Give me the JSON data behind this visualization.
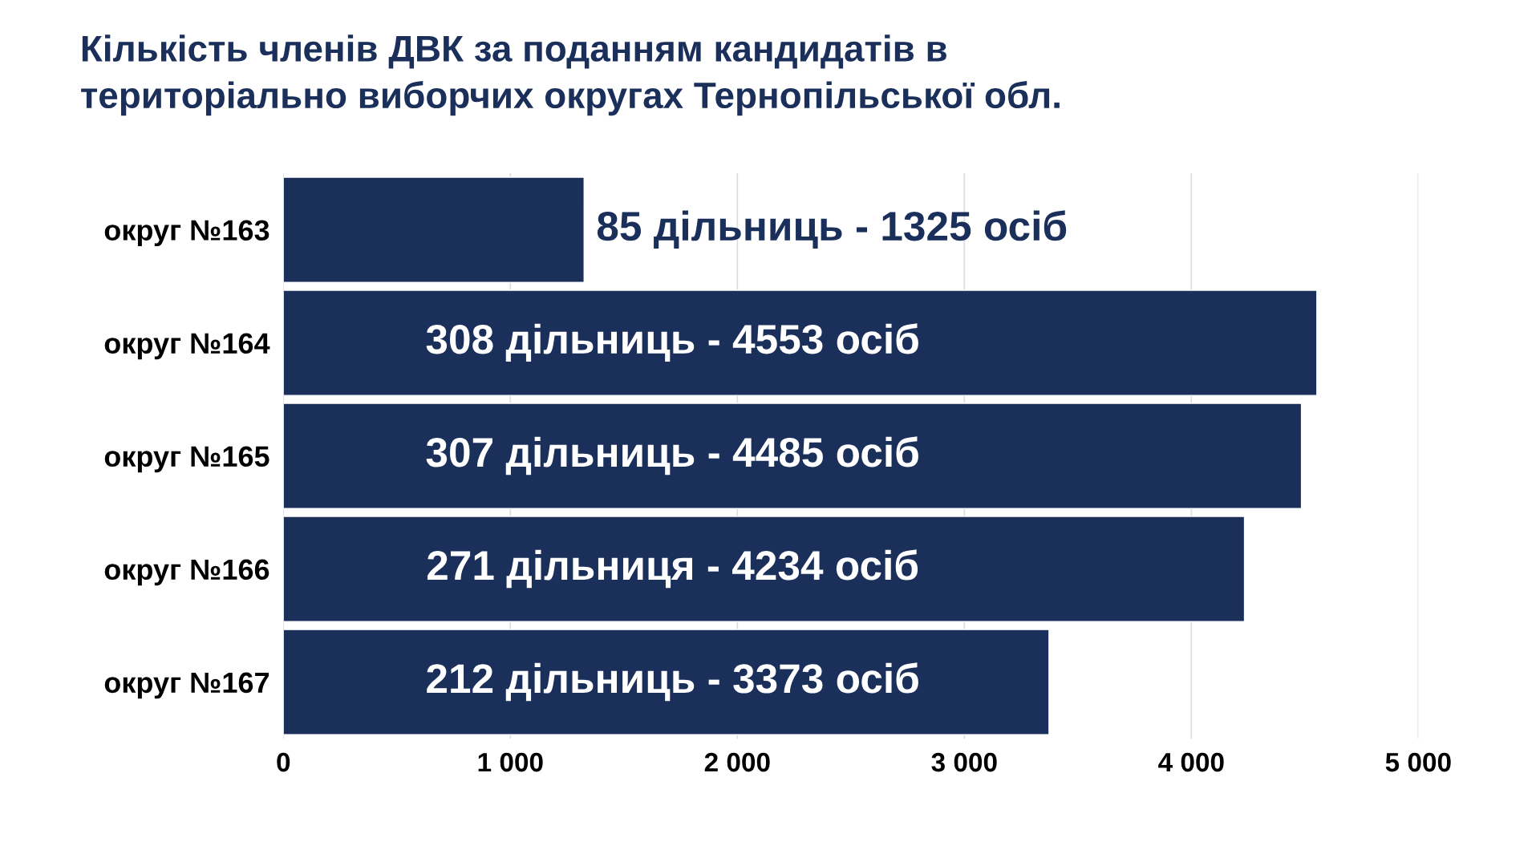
{
  "chart_data": {
    "type": "bar",
    "orientation": "horizontal",
    "title": "Кількість членів ДВК за поданням кандидатів в\nтериторіально виборчих округах Тернопільської обл.",
    "categories": [
      "округ №163",
      "округ №164",
      "округ №165",
      "округ №166",
      "округ №167"
    ],
    "values": [
      1325,
      4553,
      4485,
      4234,
      3373
    ],
    "annotations": [
      "85 дільниць - 1325 осіб",
      "308 дільниць - 4553 осіб",
      "307 дільниць - 4485 осіб",
      "271 дільниця - 4234 осіб",
      "212 дільниць - 3373 осіб"
    ],
    "color": "#1b2f5b",
    "xlim": [
      0,
      5000
    ],
    "xticks": [
      0,
      {
        "value": 1000,
        "label": "1 000"
      },
      {
        "value": 2000,
        "label": "2 000"
      },
      {
        "value": 3000,
        "label": "3 000"
      },
      {
        "value": 4000,
        "label": "4 000"
      },
      {
        "value": 5000,
        "label": "5 000"
      }
    ],
    "grid": "x"
  }
}
